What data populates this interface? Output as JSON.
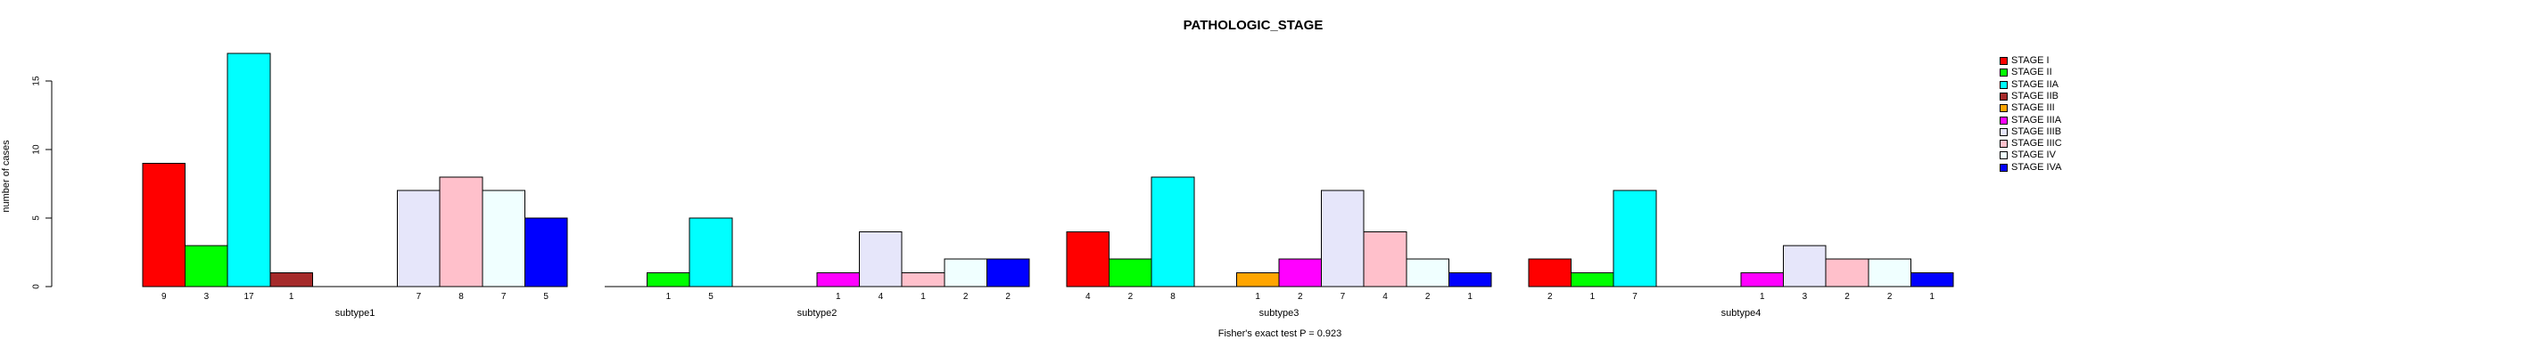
{
  "title": "PATHOLOGIC_STAGE",
  "caption": "Fisher's exact test P = 0.923",
  "chart_data": {
    "type": "bar",
    "title": "PATHOLOGIC_STAGE",
    "xlabel": "",
    "ylabel": "number of cases",
    "categories": [
      "subtype1",
      "subtype2",
      "subtype3",
      "subtype4"
    ],
    "series": [
      {
        "name": "STAGE I",
        "color": "#FF0000",
        "values": [
          9,
          0,
          4,
          2
        ]
      },
      {
        "name": "STAGE II",
        "color": "#00FF00",
        "values": [
          3,
          1,
          2,
          1
        ]
      },
      {
        "name": "STAGE IIA",
        "color": "#00FFFF",
        "values": [
          17,
          5,
          8,
          7
        ]
      },
      {
        "name": "STAGE IIB",
        "color": "#A52A2A",
        "values": [
          1,
          0,
          0,
          0
        ]
      },
      {
        "name": "STAGE III",
        "color": "#FFA500",
        "values": [
          0,
          0,
          1,
          0
        ]
      },
      {
        "name": "STAGE IIIA",
        "color": "#FF00FF",
        "values": [
          0,
          1,
          2,
          1
        ]
      },
      {
        "name": "STAGE IIIB",
        "color": "#E6E6FA",
        "values": [
          7,
          4,
          7,
          3
        ]
      },
      {
        "name": "STAGE IIIC",
        "color": "#FFC0CB",
        "values": [
          8,
          1,
          4,
          2
        ]
      },
      {
        "name": "STAGE IV",
        "color": "#F0FFFF",
        "values": [
          7,
          2,
          2,
          2
        ]
      },
      {
        "name": "STAGE IVA",
        "color": "#0000FF",
        "values": [
          5,
          2,
          1,
          1
        ]
      }
    ],
    "yticks": [
      0,
      5,
      10,
      15
    ],
    "ylim": [
      0,
      17
    ],
    "bar_value_labels_shown": true,
    "grid": false,
    "legend_position": "right-outside",
    "annotation": "Fisher's exact test P = 0.923"
  }
}
